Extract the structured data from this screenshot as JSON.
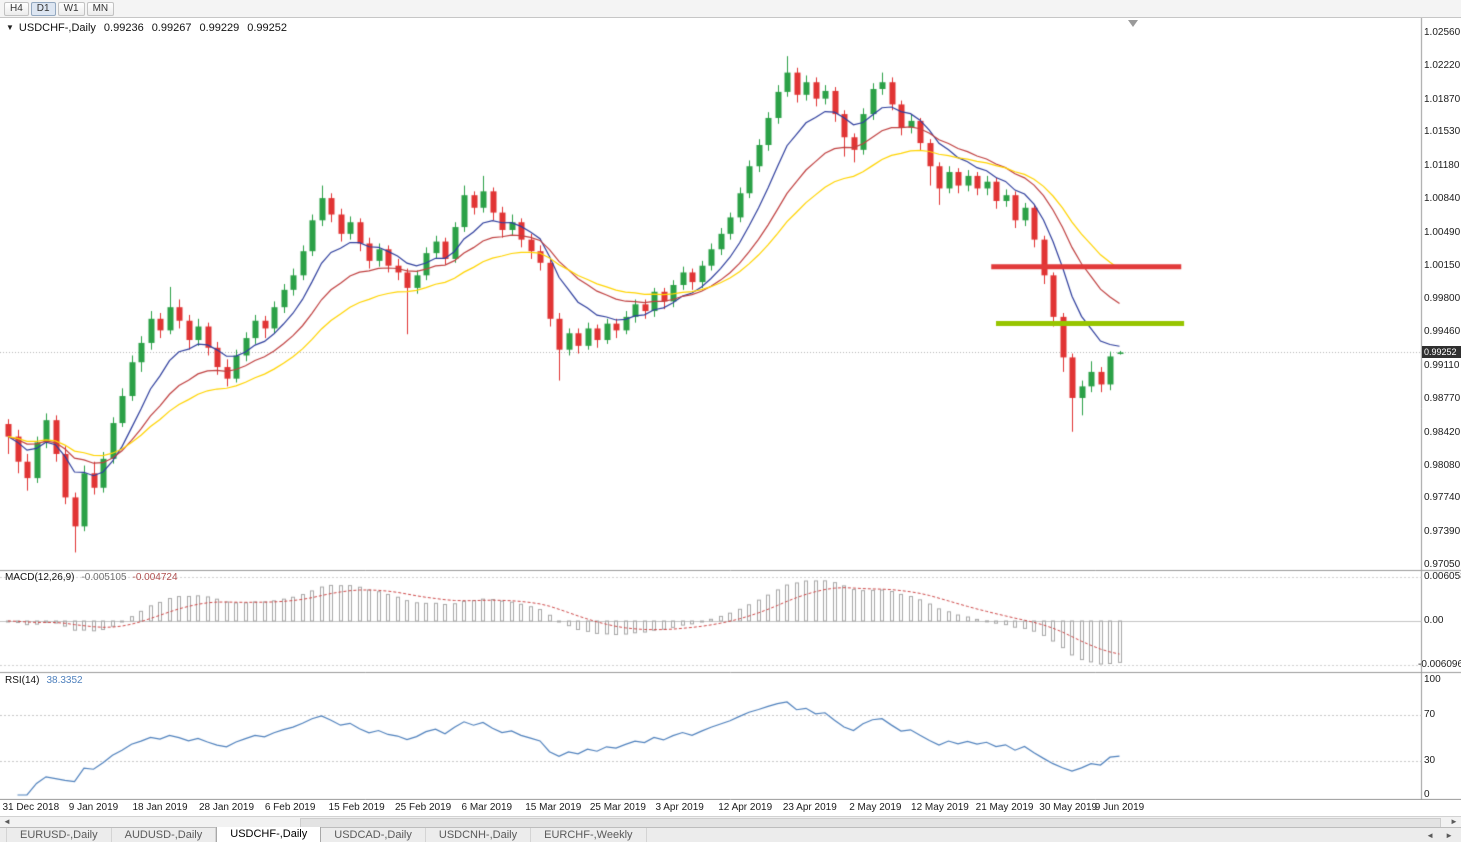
{
  "window": {
    "toolbar": {
      "buttons": [
        {
          "label": "H4",
          "active": false
        },
        {
          "label": "D1",
          "active": true
        },
        {
          "label": "W1",
          "active": false
        },
        {
          "label": "MN",
          "active": false
        }
      ]
    },
    "icons": {
      "title_collapse": "▼",
      "scrollbar_left": "◄",
      "scrollbar_right": "►",
      "tab_scroll_left": "◄",
      "tab_scroll_right": "►"
    }
  },
  "chart": {
    "title": {
      "symbol": "USDCHF-,Daily",
      "open": "0.99236",
      "high": "0.99267",
      "low": "0.99229",
      "close": "0.99252"
    },
    "price_tag": "0.99252"
  },
  "indicators": {
    "macd": {
      "label": "MACD(12,26,9)",
      "value_main": "-0.005105",
      "value_signal": "-0.004724",
      "axis": [
        "0.006058",
        "0.00",
        "-0.006096"
      ]
    },
    "rsi": {
      "label": "RSI(14)",
      "value": "38.3352",
      "axis": [
        "100",
        "70",
        "30",
        "0"
      ]
    }
  },
  "tabs": [
    {
      "label": "EURUSD-,Daily",
      "active": false
    },
    {
      "label": "AUDUSD-,Daily",
      "active": false
    },
    {
      "label": "USDCHF-,Daily",
      "active": true
    },
    {
      "label": "USDCAD-,Daily",
      "active": false
    },
    {
      "label": "USDCNH-,Daily",
      "active": false
    },
    {
      "label": "EURCHF-,Weekly",
      "active": false
    }
  ],
  "chart_data": {
    "type": "candlestick",
    "symbol": "USDCHF",
    "period": "Daily",
    "current_price": 0.99252,
    "price_axis_range": {
      "max": 1.0256,
      "min": 0.9705
    },
    "price_axis_ticks": [
      "1.02560",
      "1.02220",
      "1.01870",
      "1.01530",
      "1.01180",
      "1.00840",
      "1.00490",
      "1.00150",
      "0.99800",
      "0.99460",
      "0.99110",
      "0.98770",
      "0.98420",
      "0.98080",
      "0.97740",
      "0.97390",
      "0.97050"
    ],
    "colors": {
      "up": "#2ba147",
      "down": "#e13434",
      "price_line": "#b5b5b5",
      "macd_hist": "#a8a8a8",
      "macd_signal": "#cf4a4a",
      "rsi_line": "#4f81bd"
    },
    "moving_averages": [
      {
        "name": "ma-fast",
        "period": 8,
        "color": "#2f3f9e"
      },
      {
        "name": "ma-medium",
        "period": 16,
        "color": "#c04040"
      },
      {
        "name": "ma-slow",
        "period": 26,
        "color": "#ffd400"
      }
    ],
    "levels": [
      {
        "name": "resistance-line",
        "price": 1.0014,
        "color": "#e23a3a",
        "from_index": 103.5,
        "to_index": 123.5,
        "width": 5
      },
      {
        "name": "support-line",
        "price": 0.9955,
        "color": "#97c500",
        "from_index": 104.0,
        "to_index": 123.8,
        "width": 5
      }
    ],
    "macd": {
      "fast": 12,
      "slow": 26,
      "signal": 9,
      "scale_max": 0.006058,
      "scale_min": -0.006096,
      "current_main": -0.005105,
      "current_signal": -0.004724
    },
    "rsi": {
      "period": 14,
      "levels": [
        70,
        30
      ],
      "current": 38.3352
    },
    "date_labels": [
      {
        "text": "31 Dec 2018",
        "index": 2.4
      },
      {
        "text": "9 Jan 2019",
        "index": 9
      },
      {
        "text": "18 Jan 2019",
        "index": 16
      },
      {
        "text": "28 Jan 2019",
        "index": 23
      },
      {
        "text": "6 Feb 2019",
        "index": 29.7
      },
      {
        "text": "15 Feb 2019",
        "index": 36.7
      },
      {
        "text": "25 Feb 2019",
        "index": 43.7
      },
      {
        "text": "6 Mar 2019",
        "index": 50.4
      },
      {
        "text": "15 Mar 2019",
        "index": 57.4
      },
      {
        "text": "25 Mar 2019",
        "index": 64.2
      },
      {
        "text": "3 Apr 2019",
        "index": 70.7
      },
      {
        "text": "12 Apr 2019",
        "index": 77.6
      },
      {
        "text": "23 Apr 2019",
        "index": 84.4
      },
      {
        "text": "2 May 2019",
        "index": 91.3
      },
      {
        "text": "12 May 2019",
        "index": 98.1
      },
      {
        "text": "21 May 2019",
        "index": 104.9
      },
      {
        "text": "30 May 2019",
        "index": 111.6
      },
      {
        "text": "9 Jun 2019",
        "index": 117
      }
    ],
    "candles": [
      [
        0.9851,
        0.9856,
        0.982,
        0.9838
      ],
      [
        0.9838,
        0.9845,
        0.98,
        0.9812
      ],
      [
        0.9812,
        0.982,
        0.9782,
        0.9795
      ],
      [
        0.9795,
        0.9838,
        0.979,
        0.9832
      ],
      [
        0.9832,
        0.9862,
        0.9826,
        0.9855
      ],
      [
        0.9855,
        0.986,
        0.9812,
        0.982
      ],
      [
        0.982,
        0.9828,
        0.9768,
        0.9775
      ],
      [
        0.9775,
        0.978,
        0.9718,
        0.9745
      ],
      [
        0.9745,
        0.9808,
        0.974,
        0.98
      ],
      [
        0.98,
        0.9812,
        0.9778,
        0.9785
      ],
      [
        0.9785,
        0.9822,
        0.978,
        0.9815
      ],
      [
        0.9815,
        0.9858,
        0.981,
        0.9852
      ],
      [
        0.9852,
        0.9888,
        0.9848,
        0.988
      ],
      [
        0.988,
        0.9922,
        0.9875,
        0.9915
      ],
      [
        0.9915,
        0.9942,
        0.9905,
        0.9935
      ],
      [
        0.9935,
        0.9968,
        0.9928,
        0.996
      ],
      [
        0.996,
        0.9966,
        0.994,
        0.9948
      ],
      [
        0.9948,
        0.9993,
        0.9944,
        0.9972
      ],
      [
        0.9972,
        0.998,
        0.995,
        0.9958
      ],
      [
        0.9958,
        0.9964,
        0.9928,
        0.9938
      ],
      [
        0.9938,
        0.996,
        0.9932,
        0.9952
      ],
      [
        0.9952,
        0.9956,
        0.9922,
        0.993
      ],
      [
        0.993,
        0.9936,
        0.9902,
        0.991
      ],
      [
        0.991,
        0.9918,
        0.989,
        0.9898
      ],
      [
        0.9898,
        0.9928,
        0.9894,
        0.9922
      ],
      [
        0.9922,
        0.9946,
        0.9916,
        0.994
      ],
      [
        0.994,
        0.9964,
        0.9934,
        0.9958
      ],
      [
        0.9958,
        0.9963,
        0.994,
        0.995
      ],
      [
        0.995,
        0.9978,
        0.9945,
        0.9972
      ],
      [
        0.9972,
        0.9996,
        0.9966,
        0.999
      ],
      [
        0.999,
        1.0012,
        0.9984,
        1.0005
      ],
      [
        1.0005,
        1.0036,
        1.0,
        1.003
      ],
      [
        1.003,
        1.0068,
        1.0025,
        1.0062
      ],
      [
        1.0062,
        1.0098,
        1.0056,
        1.0085
      ],
      [
        1.0085,
        1.009,
        1.006,
        1.0068
      ],
      [
        1.0068,
        1.0074,
        1.004,
        1.0048
      ],
      [
        1.0048,
        1.0066,
        1.0042,
        1.006
      ],
      [
        1.006,
        1.0064,
        1.003,
        1.0038
      ],
      [
        1.0038,
        1.0044,
        1.0012,
        1.002
      ],
      [
        1.002,
        1.0038,
        1.0014,
        1.0032
      ],
      [
        1.0032,
        1.0036,
        1.0008,
        1.0015
      ],
      [
        1.0015,
        1.0022,
        1.0,
        1.0008
      ],
      [
        1.0008,
        1.0012,
        0.9944,
        0.9992
      ],
      [
        0.9992,
        1.001,
        0.9986,
        1.0005
      ],
      [
        1.0005,
        1.0034,
        1.0,
        1.0028
      ],
      [
        1.0028,
        1.0046,
        1.0022,
        1.004
      ],
      [
        1.004,
        1.0044,
        1.0016,
        1.0022
      ],
      [
        1.0022,
        1.006,
        1.0018,
        1.0055
      ],
      [
        1.0055,
        1.0098,
        1.005,
        1.0088
      ],
      [
        1.0088,
        1.0092,
        1.0068,
        1.0075
      ],
      [
        1.0075,
        1.0108,
        1.007,
        1.0092
      ],
      [
        1.0092,
        1.0096,
        1.0062,
        1.007
      ],
      [
        1.007,
        1.0076,
        1.0044,
        1.0052
      ],
      [
        1.0052,
        1.0068,
        1.0046,
        1.006
      ],
      [
        1.006,
        1.0064,
        1.0034,
        1.0042
      ],
      [
        1.0042,
        1.0048,
        1.0022,
        1.003
      ],
      [
        1.003,
        1.0036,
        1.001,
        1.0018
      ],
      [
        1.0018,
        1.0022,
        0.9952,
        0.996
      ],
      [
        0.996,
        0.9966,
        0.9896,
        0.9928
      ],
      [
        0.9928,
        0.995,
        0.9922,
        0.9945
      ],
      [
        0.9945,
        0.995,
        0.9924,
        0.9932
      ],
      [
        0.9932,
        0.9956,
        0.9928,
        0.995
      ],
      [
        0.995,
        0.9954,
        0.993,
        0.9938
      ],
      [
        0.9938,
        0.996,
        0.9934,
        0.9955
      ],
      [
        0.9955,
        0.996,
        0.994,
        0.9948
      ],
      [
        0.9948,
        0.9968,
        0.9944,
        0.9962
      ],
      [
        0.9962,
        0.998,
        0.9956,
        0.9975
      ],
      [
        0.9975,
        0.998,
        0.996,
        0.9968
      ],
      [
        0.9968,
        0.9992,
        0.9962,
        0.9988
      ],
      [
        0.9988,
        0.9992,
        0.997,
        0.9978
      ],
      [
        0.9978,
        1.0,
        0.9972,
        0.9995
      ],
      [
        0.9995,
        1.0014,
        0.999,
        1.0008
      ],
      [
        1.0008,
        1.0012,
        0.999,
        0.9998
      ],
      [
        0.9998,
        1.002,
        0.9992,
        1.0015
      ],
      [
        1.0015,
        1.0038,
        1.001,
        1.0032
      ],
      [
        1.0032,
        1.0054,
        1.0026,
        1.0048
      ],
      [
        1.0048,
        1.007,
        1.0042,
        1.0065
      ],
      [
        1.0065,
        1.0096,
        1.006,
        1.009
      ],
      [
        1.009,
        1.0124,
        1.0085,
        1.0118
      ],
      [
        1.0118,
        1.0146,
        1.0112,
        1.014
      ],
      [
        1.014,
        1.0174,
        1.0134,
        1.0168
      ],
      [
        1.0168,
        1.0202,
        1.0162,
        1.0195
      ],
      [
        1.0195,
        1.0232,
        1.019,
        1.0215
      ],
      [
        1.0215,
        1.022,
        1.0184,
        1.0192
      ],
      [
        1.0192,
        1.0212,
        1.0186,
        1.0205
      ],
      [
        1.0205,
        1.021,
        1.018,
        1.0188
      ],
      [
        1.0188,
        1.0202,
        1.0182,
        1.0196
      ],
      [
        1.0196,
        1.02,
        1.0164,
        1.0172
      ],
      [
        1.0172,
        1.0176,
        1.0128,
        1.0148
      ],
      [
        1.0148,
        1.0152,
        1.0122,
        1.0135
      ],
      [
        1.0135,
        1.0178,
        1.013,
        1.0172
      ],
      [
        1.0172,
        1.0204,
        1.0166,
        1.0198
      ],
      [
        1.0198,
        1.0215,
        1.0192,
        1.0205
      ],
      [
        1.0205,
        1.021,
        1.0176,
        1.0182
      ],
      [
        1.0182,
        1.0186,
        1.015,
        1.0158
      ],
      [
        1.0158,
        1.0172,
        1.0152,
        1.0165
      ],
      [
        1.0165,
        1.0168,
        1.0134,
        1.0142
      ],
      [
        1.0142,
        1.0146,
        1.0098,
        1.0118
      ],
      [
        1.0118,
        1.0122,
        1.0078,
        1.0095
      ],
      [
        1.0095,
        1.0118,
        1.009,
        1.0112
      ],
      [
        1.0112,
        1.0116,
        1.009,
        1.0098
      ],
      [
        1.0098,
        1.0114,
        1.0092,
        1.0108
      ],
      [
        1.0108,
        1.0112,
        1.0088,
        1.0095
      ],
      [
        1.0095,
        1.0108,
        1.0088,
        1.0102
      ],
      [
        1.0102,
        1.0106,
        1.0074,
        1.0082
      ],
      [
        1.0082,
        1.0094,
        1.0076,
        1.0088
      ],
      [
        1.0088,
        1.0092,
        1.0054,
        1.0062
      ],
      [
        1.0062,
        1.008,
        1.0056,
        1.0075
      ],
      [
        1.0075,
        1.0078,
        1.0034,
        1.0042
      ],
      [
        1.0042,
        1.0046,
        0.9996,
        1.0005
      ],
      [
        1.0005,
        1.0008,
        0.9952,
        0.9962
      ],
      [
        0.9962,
        0.9966,
        0.9905,
        0.992
      ],
      [
        0.992,
        0.9924,
        0.9843,
        0.9878
      ],
      [
        0.9878,
        0.9896,
        0.986,
        0.989
      ],
      [
        0.989,
        0.9916,
        0.9884,
        0.9905
      ],
      [
        0.9905,
        0.991,
        0.9884,
        0.9892
      ],
      [
        0.9892,
        0.9926,
        0.9886,
        0.9921
      ],
      [
        0.99236,
        0.99267,
        0.99229,
        0.99252
      ]
    ]
  }
}
